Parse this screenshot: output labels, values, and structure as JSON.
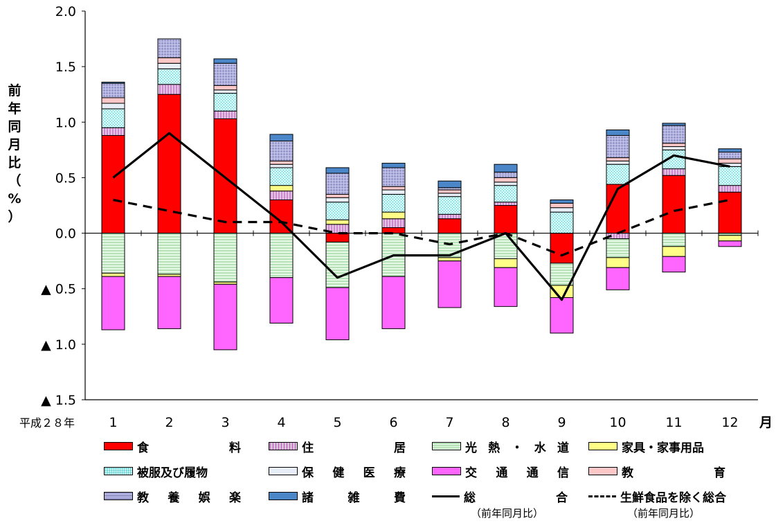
{
  "chart_data": {
    "type": "bar",
    "title": "",
    "ylabel": [
      "前",
      "年",
      "同",
      "月",
      "比",
      "（",
      "%",
      "）"
    ],
    "xprefix": "平成２８年",
    "xunit": "月",
    "categories": [
      "1",
      "2",
      "3",
      "4",
      "5",
      "6",
      "7",
      "8",
      "9",
      "10",
      "11",
      "12"
    ],
    "ylim": [
      -1.5,
      2.0
    ],
    "yticks": [
      {
        "v": 2.0,
        "t": "2.0"
      },
      {
        "v": 1.5,
        "t": "1.5"
      },
      {
        "v": 1.0,
        "t": "1.0"
      },
      {
        "v": 0.5,
        "t": "0.5"
      },
      {
        "v": 0.0,
        "t": "0.0"
      },
      {
        "v": -0.5,
        "t": "▲ 0.5"
      },
      {
        "v": -1.0,
        "t": "▲ 1.0"
      },
      {
        "v": -1.5,
        "t": "▲ 1.5"
      }
    ],
    "series": [
      {
        "name": "食料",
        "color": "#ff0000",
        "pattern": "solid",
        "values": [
          0.88,
          1.25,
          1.03,
          0.3,
          -0.08,
          0.05,
          0.13,
          0.25,
          -0.27,
          0.44,
          0.52,
          0.37
        ]
      },
      {
        "name": "住居",
        "color": "#cc88cc",
        "pattern": "vlines",
        "values": [
          0.07,
          0.09,
          0.07,
          0.08,
          0.08,
          0.08,
          0.04,
          0.03,
          0.0,
          -0.05,
          0.06,
          0.06
        ]
      },
      {
        "name": "光熱・水道",
        "color": "#ccf0cc",
        "pattern": "hlines",
        "values": [
          -0.36,
          -0.37,
          -0.44,
          -0.4,
          -0.41,
          -0.39,
          -0.22,
          -0.23,
          -0.2,
          -0.17,
          -0.12,
          -0.02
        ]
      },
      {
        "name": "家具・家事用品",
        "color": "#ffff88",
        "pattern": "solid",
        "values": [
          -0.03,
          -0.02,
          -0.02,
          0.05,
          0.04,
          0.06,
          -0.03,
          -0.08,
          -0.11,
          -0.09,
          -0.09,
          -0.05
        ]
      },
      {
        "name": "被服及び履物",
        "color": "#aeeeee",
        "pattern": "dots",
        "values": [
          0.17,
          0.14,
          0.16,
          0.16,
          0.16,
          0.16,
          0.16,
          0.15,
          0.19,
          0.18,
          0.17,
          0.17
        ]
      },
      {
        "name": "保健医療",
        "color": "#e8eef8",
        "pattern": "solid",
        "values": [
          0.05,
          0.05,
          0.03,
          0.03,
          0.04,
          0.04,
          0.03,
          0.03,
          0.04,
          0.03,
          0.03,
          0.03
        ]
      },
      {
        "name": "交通通信",
        "color": "#ff66ff",
        "pattern": "solid",
        "values": [
          -0.48,
          -0.47,
          -0.59,
          -0.41,
          -0.47,
          -0.47,
          -0.42,
          -0.35,
          -0.32,
          -0.2,
          -0.14,
          -0.05
        ]
      },
      {
        "name": "教育",
        "color": "#ffc8c8",
        "pattern": "solid",
        "values": [
          0.05,
          0.05,
          0.04,
          0.03,
          0.03,
          0.03,
          0.03,
          0.04,
          0.04,
          0.03,
          0.03,
          0.04
        ]
      },
      {
        "name": "教養娯楽",
        "color": "#9999cc",
        "pattern": "grid",
        "values": [
          0.13,
          0.17,
          0.2,
          0.18,
          0.19,
          0.17,
          0.02,
          0.05,
          0.0,
          0.2,
          0.16,
          0.06
        ]
      },
      {
        "name": "諸雑費",
        "color": "#4a86c8",
        "pattern": "solid",
        "values": [
          0.01,
          0.0,
          0.04,
          0.06,
          0.05,
          0.04,
          0.06,
          0.07,
          0.03,
          0.05,
          0.02,
          0.03
        ]
      }
    ],
    "lines": [
      {
        "name": "総合",
        "sub": "（前年同月比）",
        "style": "solid",
        "values": [
          0.5,
          0.9,
          0.5,
          0.1,
          -0.4,
          -0.2,
          -0.2,
          0.0,
          -0.6,
          0.4,
          0.7,
          0.6
        ]
      },
      {
        "name": "生鮮食品を除く総合",
        "sub": "（前年同月比）",
        "style": "dashed",
        "values": [
          0.3,
          0.2,
          0.1,
          0.1,
          0.0,
          0.0,
          -0.1,
          0.0,
          -0.2,
          0.0,
          0.2,
          0.3
        ]
      }
    ]
  },
  "legend": [
    {
      "label": "食料",
      "series": 0
    },
    {
      "label": "住居",
      "series": 1
    },
    {
      "label": "光熱・水道",
      "series": 2
    },
    {
      "label": "家具・家事用品",
      "series": 3
    },
    {
      "label": "被服及び履物",
      "series": 4
    },
    {
      "label": "保健医療",
      "series": 5
    },
    {
      "label": "交通通信",
      "series": 6
    },
    {
      "label": "教育",
      "series": 7
    },
    {
      "label": "教養娯楽",
      "series": 8
    },
    {
      "label": "諸雑費",
      "series": 9
    },
    {
      "label": "総合",
      "line": 0
    },
    {
      "label": "生鮮食品を除く総合",
      "line": 1
    }
  ]
}
